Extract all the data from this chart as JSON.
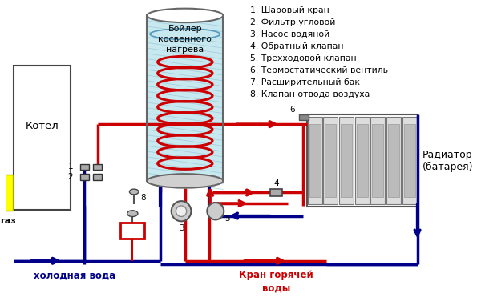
{
  "bg_color": "#ffffff",
  "legend_items": [
    "1. Шаровый кран",
    "2. Фильтр угловой",
    "3. Насос водяной",
    "4. Обратный клапан",
    "5. Трехходовой клапан",
    "6. Термостатический вентиль",
    "7. Расширительный бак",
    "8. Клапан отвода воздуха"
  ],
  "label_kotel": "Котел",
  "label_gaz": "газ",
  "label_boiler": "Бойлер\nкосвенного\nнагрева",
  "label_radiator": "Радиатор\n(батарея)",
  "label_cold": "холодная вода",
  "label_hot": "Кран горячей\nводы",
  "red": "#cc0000",
  "blue": "#00008b",
  "yellow": "#ffff00",
  "light_blue_fill": "#c8e8f0",
  "hatch_color": "#90bfd0"
}
